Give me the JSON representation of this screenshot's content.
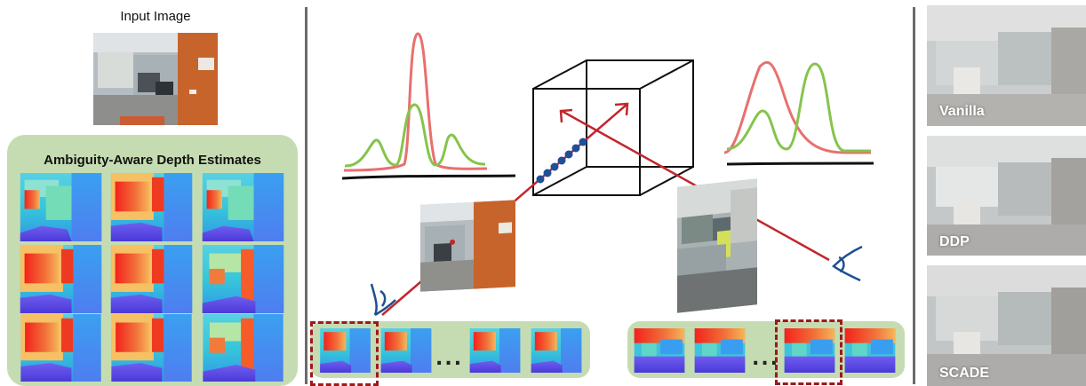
{
  "left_panel": {
    "input_title": "Input Image",
    "estimates_title": "Ambiguity-Aware Depth Estimates"
  },
  "right_panel": {
    "labels": [
      "Vanilla",
      "DDP",
      "SCADE"
    ]
  },
  "middle": {
    "ellipsis_left": "...",
    "ellipsis_right": "..."
  },
  "colors": {
    "panel_green": "#c5dcb2",
    "curve_red": "#e8706e",
    "curve_green": "#86c44c",
    "ray_red": "#c0272d",
    "sample_blue": "#1f4f9a",
    "eye_blue": "#1d4f8f",
    "highlight_dash": "#a01919"
  }
}
